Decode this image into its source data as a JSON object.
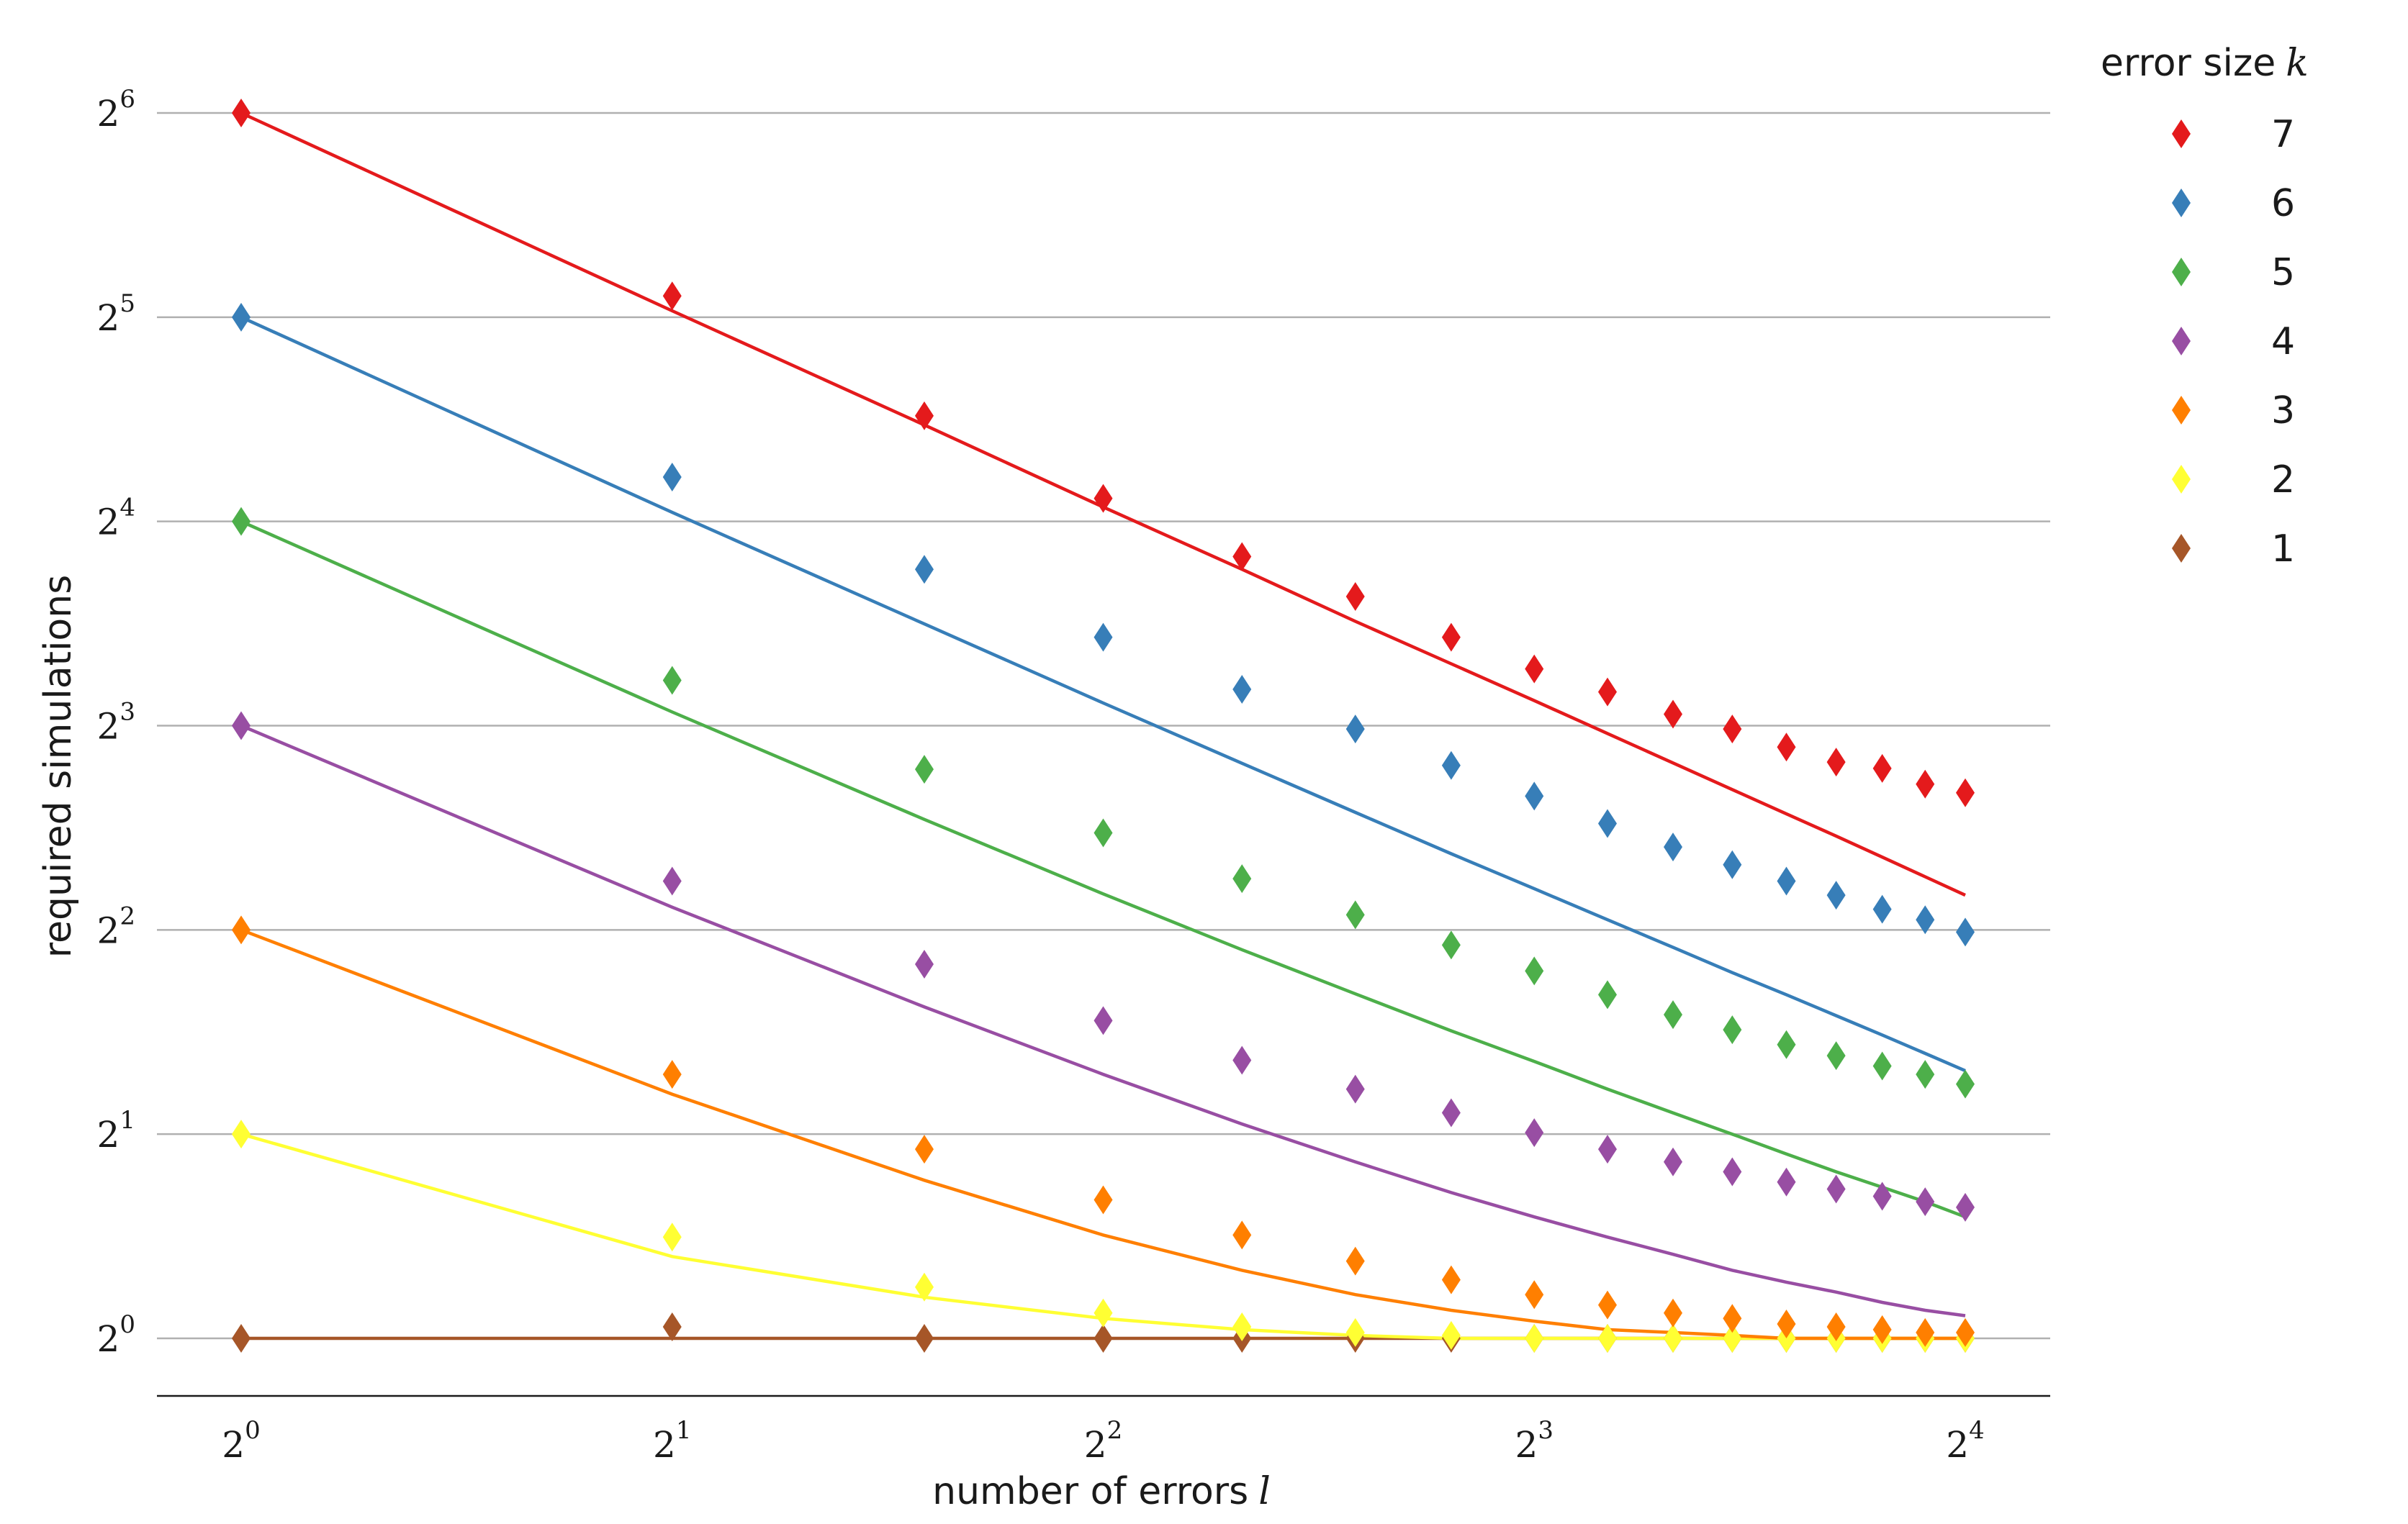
{
  "chart_data": {
    "type": "scatter",
    "xlabel": "number of errors",
    "xlabel_var": "l",
    "ylabel": "required simulations",
    "x_scale": "log2",
    "y_scale": "log2",
    "xlim": [
      0.82,
      19.2
    ],
    "ylim": [
      0.88,
      64
    ],
    "x_ticks": [
      {
        "base": "2",
        "exp": "0",
        "value": 1
      },
      {
        "base": "2",
        "exp": "1",
        "value": 2
      },
      {
        "base": "2",
        "exp": "2",
        "value": 4
      },
      {
        "base": "2",
        "exp": "3",
        "value": 8
      },
      {
        "base": "2",
        "exp": "4",
        "value": 16
      }
    ],
    "y_ticks": [
      {
        "base": "2",
        "exp": "0",
        "value": 1
      },
      {
        "base": "2",
        "exp": "1",
        "value": 2
      },
      {
        "base": "2",
        "exp": "2",
        "value": 4
      },
      {
        "base": "2",
        "exp": "3",
        "value": 8
      },
      {
        "base": "2",
        "exp": "4",
        "value": 16
      },
      {
        "base": "2",
        "exp": "5",
        "value": 32
      },
      {
        "base": "2",
        "exp": "6",
        "value": 64
      }
    ],
    "grid": "horizontal",
    "legend_position": "outside-right",
    "legend_title": "error size",
    "legend_title_var": "k",
    "x": [
      1,
      2,
      3,
      4,
      5,
      6,
      7,
      8,
      9,
      10,
      11,
      12,
      13,
      14,
      15,
      16
    ],
    "series": [
      {
        "name": "7",
        "color": "#e41a1c",
        "points": [
          64,
          34.4,
          22.9,
          17.3,
          14.2,
          12.4,
          10.8,
          9.7,
          8.97,
          8.32,
          7.91,
          7.44,
          7.07,
          6.92,
          6.56,
          6.37
        ],
        "fit": [
          64,
          32.7,
          22.2,
          16.8,
          13.6,
          11.4,
          9.87,
          8.71,
          7.79,
          7.05,
          6.44,
          5.93,
          5.5,
          5.12,
          4.79,
          4.5
        ]
      },
      {
        "name": "6",
        "color": "#377eb8",
        "points": [
          32,
          18.6,
          13.6,
          10.8,
          9.05,
          7.91,
          6.99,
          6.3,
          5.74,
          5.3,
          4.99,
          4.72,
          4.5,
          4.29,
          4.14,
          3.97
        ],
        "fit": [
          32,
          16.5,
          11.3,
          8.64,
          7.04,
          5.96,
          5.18,
          4.6,
          4.14,
          3.77,
          3.46,
          3.21,
          2.99,
          2.8,
          2.63,
          2.48
        ]
      },
      {
        "name": "5",
        "color": "#4daf4a",
        "points": [
          16,
          9.33,
          6.9,
          5.56,
          4.76,
          4.21,
          3.8,
          3.48,
          3.21,
          3.0,
          2.85,
          2.71,
          2.61,
          2.52,
          2.45,
          2.37
        ],
        "fit": [
          16,
          8.38,
          5.82,
          4.52,
          3.74,
          3.22,
          2.84,
          2.56,
          2.33,
          2.15,
          2.0,
          1.87,
          1.76,
          1.67,
          1.59,
          1.51
        ]
      },
      {
        "name": "4",
        "color": "#984ea3",
        "points": [
          8,
          4.72,
          3.56,
          2.94,
          2.57,
          2.33,
          2.15,
          2.01,
          1.9,
          1.82,
          1.76,
          1.7,
          1.66,
          1.62,
          1.59,
          1.56
        ],
        "fit": [
          8,
          4.32,
          3.08,
          2.45,
          2.07,
          1.82,
          1.64,
          1.51,
          1.41,
          1.33,
          1.26,
          1.21,
          1.17,
          1.13,
          1.1,
          1.08
        ]
      },
      {
        "name": "3",
        "color": "#ff7f00",
        "points": [
          4,
          2.45,
          1.9,
          1.6,
          1.42,
          1.3,
          1.22,
          1.16,
          1.12,
          1.09,
          1.07,
          1.05,
          1.04,
          1.03,
          1.02,
          1.02
        ],
        "fit": [
          4,
          2.29,
          1.71,
          1.42,
          1.26,
          1.16,
          1.1,
          1.06,
          1.03,
          1.02,
          1.01,
          1.0,
          1.0,
          1.0,
          1.0,
          1.0
        ]
      },
      {
        "name": "2",
        "color": "#ffff33",
        "points": [
          2,
          1.41,
          1.19,
          1.09,
          1.04,
          1.02,
          1.01,
          1.0,
          1.0,
          1.0,
          1.0,
          1.0,
          1.0,
          1.0,
          1.0,
          1.0
        ],
        "fit": [
          2,
          1.32,
          1.15,
          1.07,
          1.03,
          1.01,
          1.0,
          1.0,
          1.0,
          1.0,
          1.0,
          1.0,
          1.0,
          1.0,
          1.0,
          1.0
        ]
      },
      {
        "name": "1",
        "color": "#a65628",
        "points": [
          1,
          1.04,
          1.0,
          1.0,
          1.0,
          1.0,
          1.0,
          1.0,
          1.0,
          1.0,
          1.0,
          1.0,
          1.0,
          1.0,
          1.0,
          1.0
        ],
        "fit": [
          1,
          1,
          1,
          1,
          1,
          1,
          1,
          1,
          1,
          1,
          1,
          1,
          1,
          1,
          1,
          1
        ]
      }
    ]
  }
}
